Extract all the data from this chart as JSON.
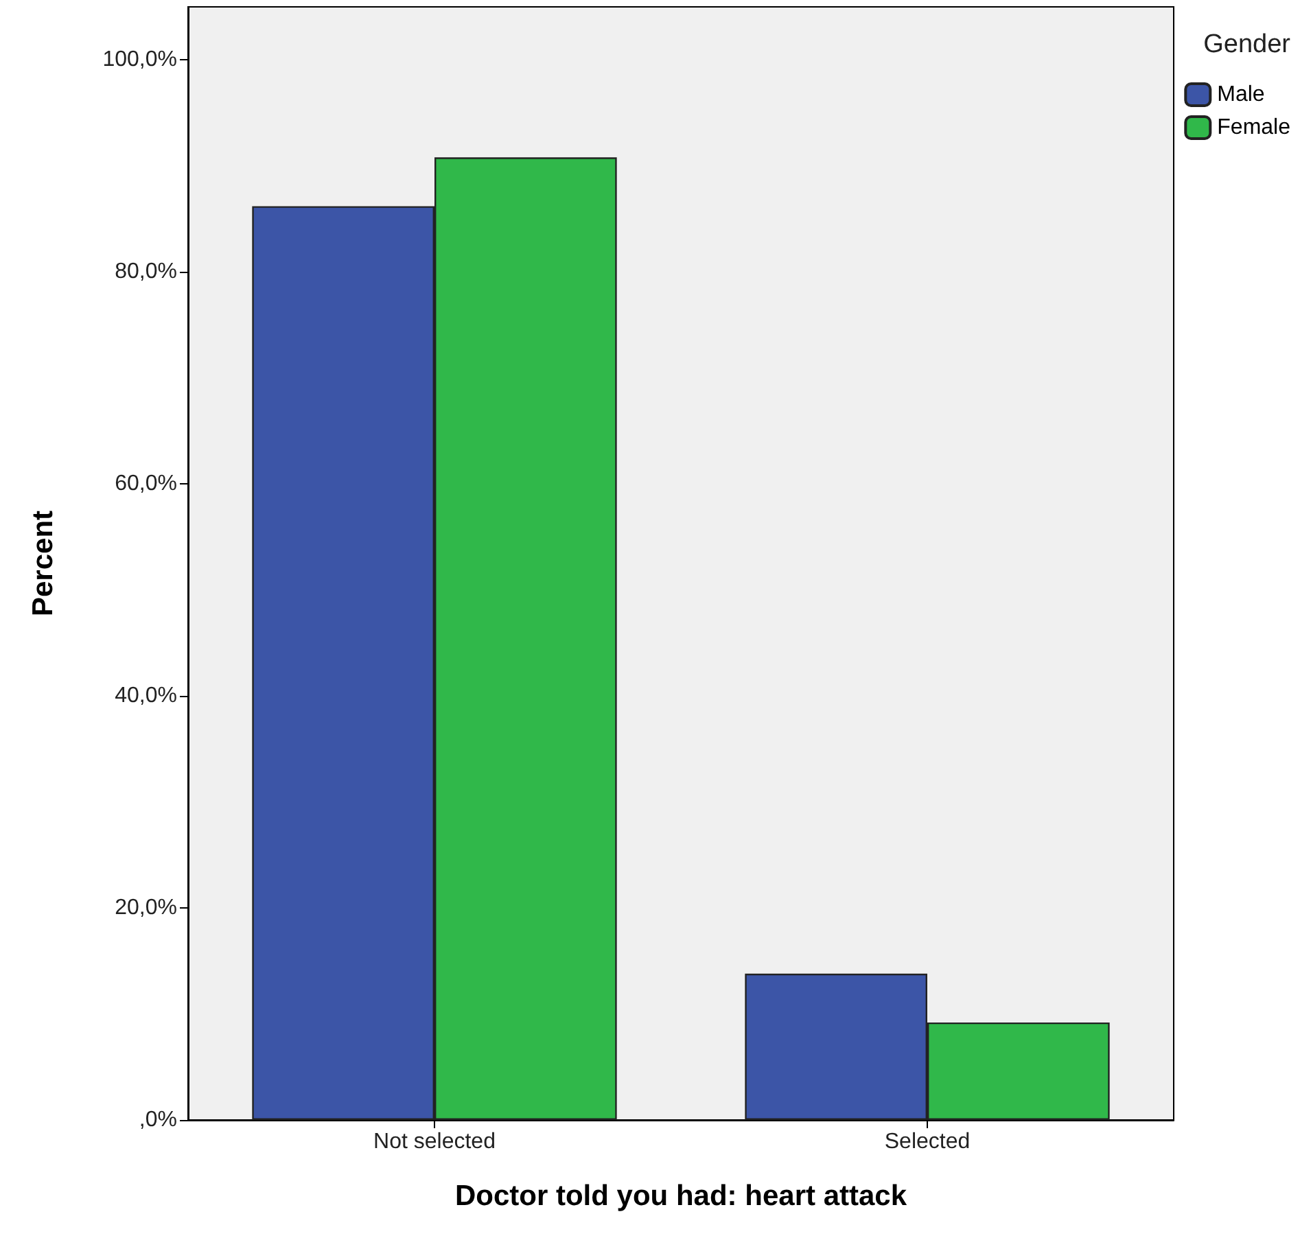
{
  "chart_data": {
    "type": "bar",
    "xlabel": "Doctor told you had: heart attack",
    "ylabel": "Percent",
    "legend_title": "Gender",
    "legend": "top right",
    "grid": false,
    "categories": [
      "Not selected",
      "Selected"
    ],
    "series": [
      {
        "name": "Male",
        "color": "#3c55a7",
        "values": [
          86.2,
          13.8
        ]
      },
      {
        "name": "Female",
        "color": "#30b84a",
        "values": [
          90.8,
          9.2
        ]
      }
    ],
    "ylim": [
      0,
      105
    ],
    "yticks": [
      {
        "value": 0,
        "label": ",0%"
      },
      {
        "value": 20,
        "label": "20,0%"
      },
      {
        "value": 40,
        "label": "40,0%"
      },
      {
        "value": 60,
        "label": "60,0%"
      },
      {
        "value": 80,
        "label": "80,0%"
      },
      {
        "value": 100,
        "label": "100,0%"
      }
    ]
  }
}
